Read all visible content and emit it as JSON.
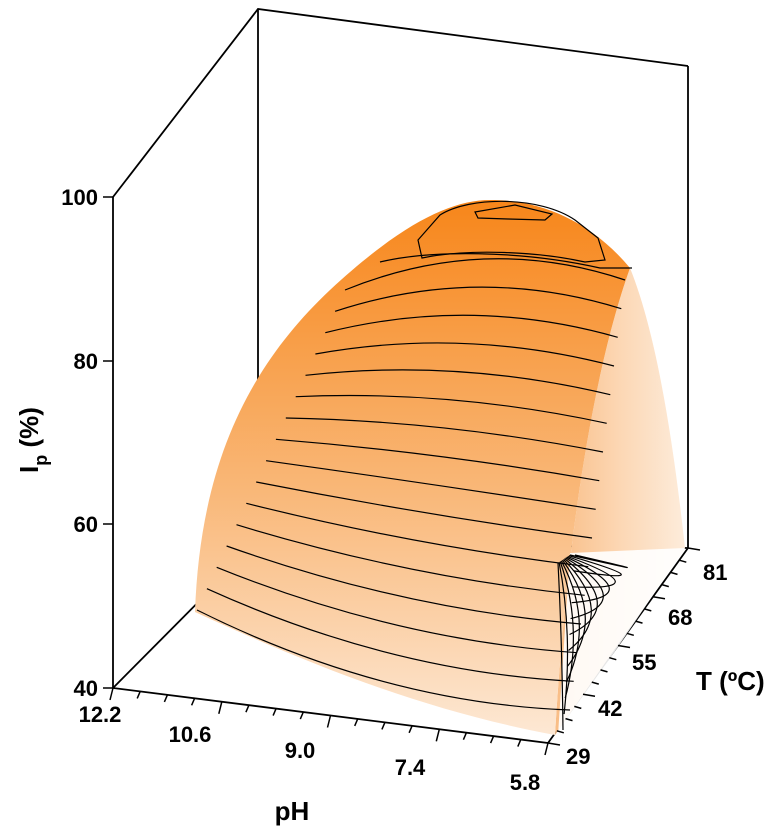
{
  "chart_data": {
    "type": "surface",
    "title": "",
    "zlabel_main": "I",
    "zlabel_sub": "p",
    "zlabel_unit": " (%)",
    "xlabel": "pH",
    "ylabel": "T (ºC)",
    "z_ticks": [
      "100",
      "80",
      "60",
      "40"
    ],
    "x_ticks": [
      "12.2",
      "10.6",
      "9.0",
      "7.4",
      "5.8"
    ],
    "y_ticks": [
      "81",
      "68",
      "55",
      "42",
      "29"
    ],
    "zlim": [
      40,
      100
    ],
    "xlim": [
      5.8,
      12.2
    ],
    "ylim": [
      29,
      81
    ],
    "peak": {
      "pH": 8.6,
      "T": 55,
      "Ip": 100
    },
    "colors": {
      "high": "#f7891f",
      "low": "#fde6cf",
      "edge": "#fff2e4"
    }
  }
}
